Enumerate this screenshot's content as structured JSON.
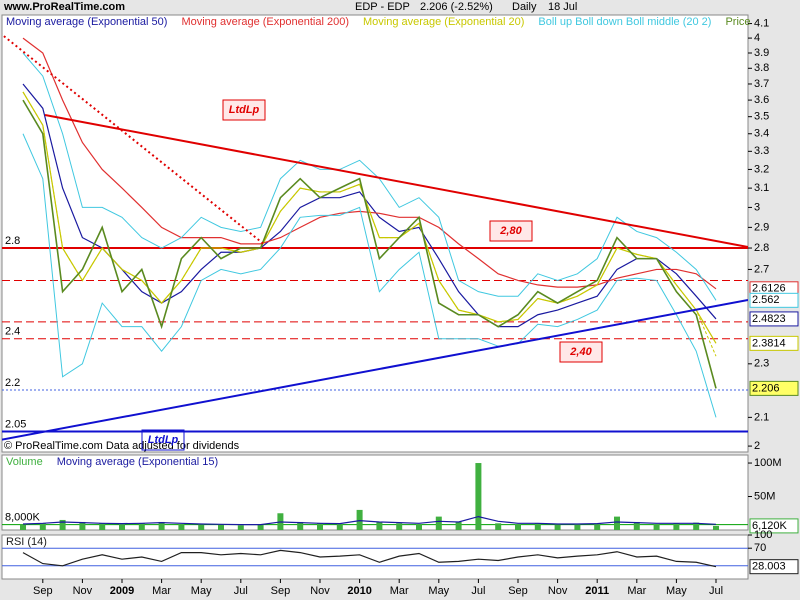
{
  "header": {
    "site": "www.ProRealTime.com",
    "instrument": "EDP - EDP",
    "quote": "2.206 (-2.52%)",
    "period": "Daily",
    "date": "18 Jul"
  },
  "footer": "© ProRealTime.com  Data adjusted for dividends",
  "annotations": [
    "LtdLp",
    "2,80",
    "2,40",
    "LtdLp"
  ],
  "chart_data": [
    {
      "type": "line",
      "label": "Price",
      "log_scale": true,
      "categories": [
        null,
        "Sep",
        null,
        "Nov",
        null,
        "2009",
        null,
        "Mar",
        null,
        "May",
        null,
        "Jul",
        null,
        "Sep",
        null,
        "Nov",
        null,
        "2010",
        null,
        "Mar",
        null,
        "May",
        null,
        "Jul",
        null,
        "Sep",
        null,
        "Nov",
        null,
        "2011",
        null,
        "Mar",
        null,
        "May",
        null,
        "Jul"
      ],
      "ylim": [
        1.98,
        4.16
      ],
      "yticks": [
        4.1,
        4,
        3.9,
        3.8,
        3.7,
        3.6,
        3.5,
        3.4,
        3.3,
        3.2,
        3.1,
        3,
        2.9,
        2.8,
        2.7,
        2.3,
        2.1,
        2
      ],
      "series": [
        {
          "name": "Moving average (Exponential 50)",
          "color": "#1a1aa0",
          "values": [
            3.7,
            3.55,
            3.1,
            2.85,
            2.8,
            2.7,
            2.6,
            2.55,
            2.6,
            2.7,
            2.78,
            2.78,
            2.8,
            2.88,
            3.0,
            3.05,
            3.05,
            3.08,
            2.95,
            2.88,
            2.9,
            2.75,
            2.6,
            2.5,
            2.45,
            2.45,
            2.5,
            2.52,
            2.55,
            2.58,
            2.7,
            2.75,
            2.75,
            2.68,
            2.58,
            2.4823
          ]
        },
        {
          "name": "Moving average (Exponential 200)",
          "color": "#e03030",
          "values": [
            4.0,
            3.9,
            3.6,
            3.35,
            3.2,
            3.1,
            3.0,
            2.9,
            2.85,
            2.85,
            2.85,
            2.82,
            2.82,
            2.85,
            2.9,
            2.95,
            2.97,
            2.98,
            2.97,
            2.95,
            2.95,
            2.9,
            2.82,
            2.75,
            2.68,
            2.65,
            2.63,
            2.62,
            2.62,
            2.63,
            2.66,
            2.68,
            2.7,
            2.7,
            2.68,
            2.6126
          ]
        },
        {
          "name": "Moving average (Exponential 20)",
          "color": "#c8c800",
          "values": [
            3.65,
            3.45,
            2.8,
            2.65,
            2.8,
            2.7,
            2.65,
            2.55,
            2.65,
            2.8,
            2.8,
            2.78,
            2.8,
            2.98,
            3.1,
            3.08,
            3.08,
            3.12,
            2.85,
            2.85,
            2.92,
            2.65,
            2.52,
            2.5,
            2.47,
            2.48,
            2.57,
            2.55,
            2.58,
            2.63,
            2.8,
            2.77,
            2.75,
            2.63,
            2.52,
            2.3814
          ]
        },
        {
          "name": "Boll up Boll down Boll middle (20 2)",
          "color": "#40c8e0",
          "values": [
            3.65,
            3.45,
            2.8,
            2.65,
            2.8,
            2.7,
            2.65,
            2.55,
            2.65,
            2.8,
            2.8,
            2.78,
            2.8,
            2.98,
            3.1,
            3.08,
            3.08,
            3.12,
            2.85,
            2.85,
            2.92,
            2.65,
            2.52,
            2.5,
            2.47,
            2.48,
            2.57,
            2.55,
            2.58,
            2.63,
            2.8,
            2.77,
            2.75,
            2.63,
            2.52,
            2.33
          ],
          "upper": [
            3.9,
            3.75,
            3.4,
            3.0,
            3.0,
            2.95,
            2.85,
            2.8,
            2.85,
            2.95,
            2.9,
            2.88,
            2.9,
            3.15,
            3.25,
            3.2,
            3.2,
            3.25,
            3.15,
            3.0,
            3.05,
            2.95,
            2.65,
            2.6,
            2.58,
            2.58,
            2.68,
            2.65,
            2.68,
            2.75,
            2.95,
            2.88,
            2.85,
            2.78,
            2.7,
            2.562
          ],
          "lower": [
            3.4,
            3.15,
            2.25,
            2.3,
            2.55,
            2.45,
            2.45,
            2.35,
            2.45,
            2.65,
            2.7,
            2.68,
            2.7,
            2.8,
            2.95,
            2.96,
            2.96,
            3.0,
            2.6,
            2.7,
            2.78,
            2.4,
            2.4,
            2.4,
            2.37,
            2.38,
            2.46,
            2.45,
            2.48,
            2.52,
            2.65,
            2.66,
            2.65,
            2.5,
            2.35,
            2.1
          ]
        },
        {
          "name": "Price",
          "color": "#5a8a20",
          "values": [
            3.6,
            3.4,
            2.6,
            2.7,
            2.9,
            2.6,
            2.7,
            2.45,
            2.75,
            2.85,
            2.75,
            2.8,
            2.8,
            3.05,
            3.15,
            3.05,
            3.1,
            3.15,
            2.75,
            2.85,
            2.95,
            2.55,
            2.5,
            2.5,
            2.45,
            2.5,
            2.6,
            2.55,
            2.6,
            2.65,
            2.85,
            2.75,
            2.75,
            2.6,
            2.5,
            2.206
          ]
        }
      ],
      "hlines": [
        {
          "value": 2.8,
          "color": "#e00000",
          "style": "solid",
          "width": 2,
          "labeled": true
        },
        {
          "value": 2.65,
          "color": "#e00000",
          "style": "dashed",
          "width": 1,
          "labeled": false
        },
        {
          "value": 2.47,
          "color": "#e00000",
          "style": "dashed",
          "width": 1,
          "labeled": false
        },
        {
          "value": 2.4,
          "color": "#e00000",
          "style": "dashed",
          "width": 1,
          "labeled": true
        },
        {
          "value": 2.2,
          "color": "#4060e0",
          "style": "dotted",
          "width": 1,
          "labeled": true
        },
        {
          "value": 2.05,
          "color": "#1010d0",
          "style": "solid",
          "width": 2,
          "labeled": true
        }
      ]
    },
    {
      "type": "bar",
      "ylim": [
        0,
        112000000
      ],
      "yticks": [
        {
          "value": 100000000,
          "label": "100M"
        },
        {
          "value": 50000000,
          "label": "50M"
        }
      ],
      "series": [
        {
          "name": "Volume",
          "color": "#40b040",
          "values": [
            8000000,
            10000000,
            15000000,
            12000000,
            10000000,
            9000000,
            10000000,
            12000000,
            9000000,
            8000000,
            8000000,
            7000000,
            8000000,
            25000000,
            12000000,
            10000000,
            9000000,
            30000000,
            12000000,
            10000000,
            9000000,
            20000000,
            12000000,
            100000000,
            10000000,
            9000000,
            10000000,
            8000000,
            9000000,
            10000000,
            20000000,
            12000000,
            9000000,
            10000000,
            11000000,
            6120000
          ],
          "value_labels": [
            null,
            null,
            null,
            null,
            null,
            null,
            null,
            null,
            null,
            null,
            null,
            null,
            null,
            null,
            null,
            null,
            null,
            null,
            null,
            null,
            null,
            null,
            null,
            null,
            null,
            null,
            null,
            null,
            null,
            null,
            null,
            null,
            null,
            null,
            null,
            "6,120K"
          ]
        },
        {
          "name": "Moving average (Exponential 15)",
          "color": "#1a1aa0",
          "type": "line",
          "values": [
            9000000,
            10000000,
            12000000,
            11000000,
            10000000,
            9500000,
            10000000,
            11000000,
            10000000,
            9000000,
            8500000,
            8000000,
            8000000,
            12000000,
            11000000,
            10000000,
            9500000,
            14000000,
            12000000,
            11000000,
            10000000,
            13000000,
            12000000,
            20000000,
            13000000,
            10000000,
            10000000,
            9000000,
            9000000,
            9500000,
            12000000,
            11000000,
            10000000,
            10000000,
            10000000,
            8500000
          ]
        }
      ],
      "hlines": [
        {
          "value": 8000000,
          "label": "8,000K",
          "color": "#00a000",
          "style": "solid",
          "width": 1,
          "labeled": true
        }
      ]
    },
    {
      "type": "line",
      "ylim": [
        0,
        100
      ],
      "yticks": [
        100,
        70
      ],
      "series": [
        {
          "name": "RSI (14)",
          "color": "#202020",
          "values": [
            60,
            35,
            30,
            45,
            55,
            45,
            50,
            40,
            60,
            60,
            55,
            58,
            55,
            65,
            60,
            50,
            52,
            55,
            38,
            52,
            58,
            38,
            40,
            45,
            42,
            50,
            55,
            48,
            52,
            55,
            62,
            50,
            52,
            40,
            38,
            28.003
          ]
        }
      ],
      "hlines": [
        {
          "value": 70,
          "color": "#4060e0",
          "style": "solid",
          "width": 1,
          "labeled": false
        },
        {
          "value": 30,
          "color": "#4060e0",
          "style": "solid",
          "width": 1,
          "labeled": false
        }
      ]
    }
  ]
}
